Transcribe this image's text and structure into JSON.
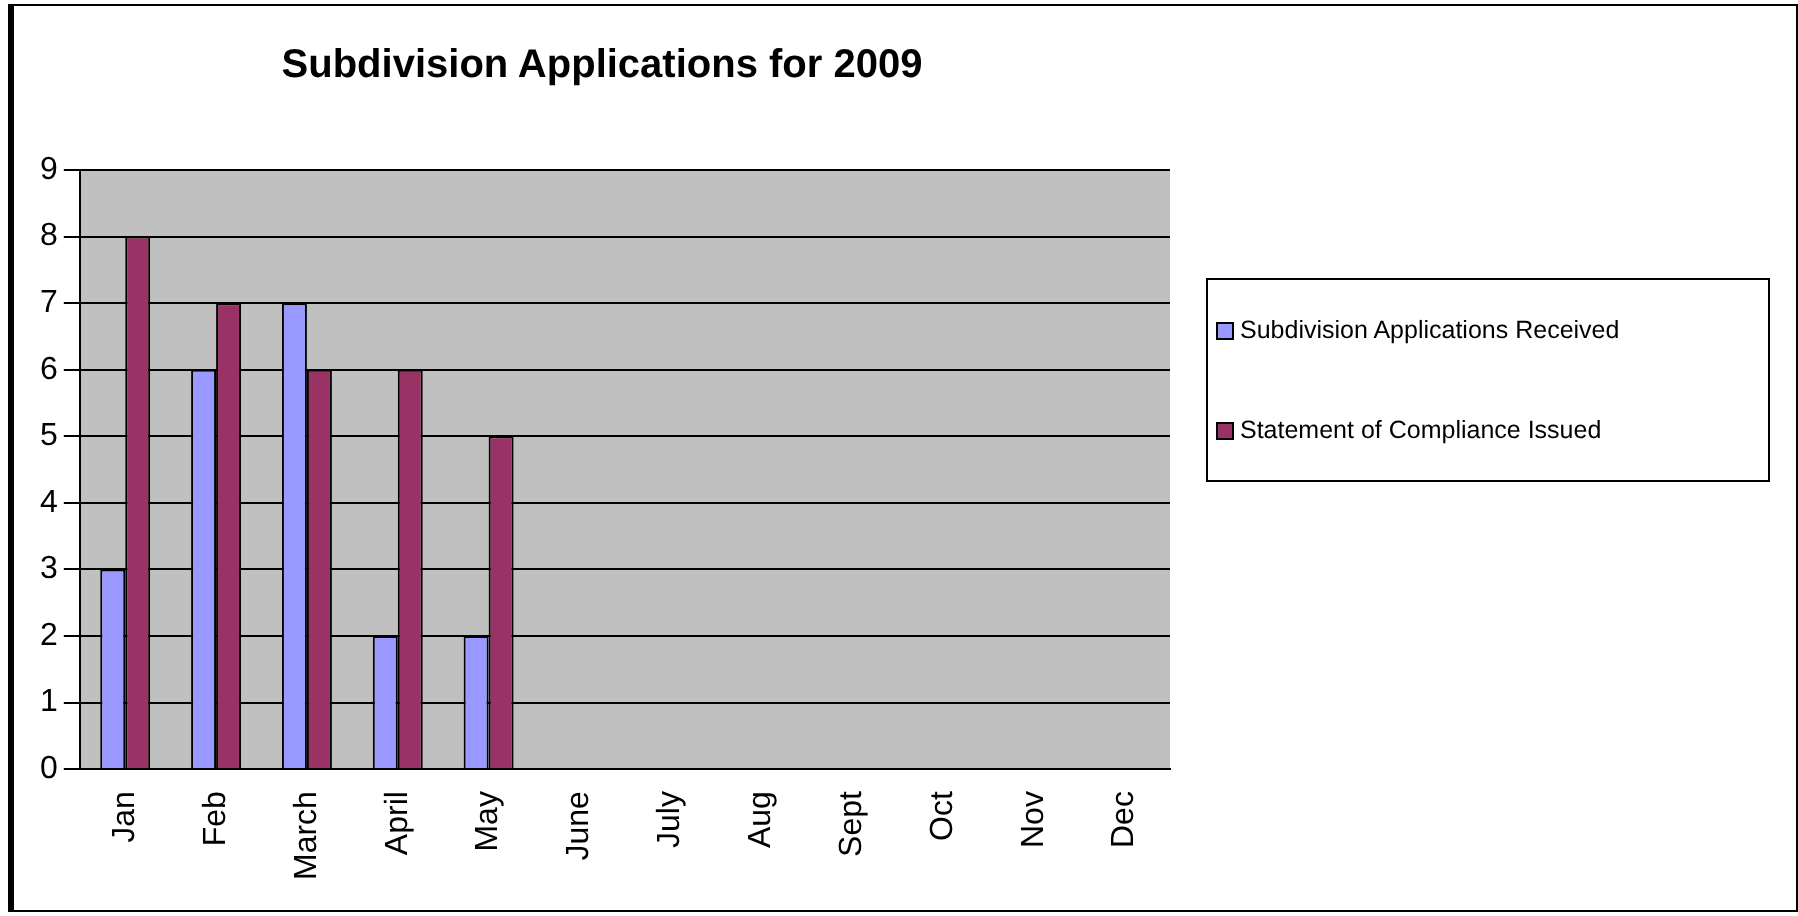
{
  "chart_data": {
    "type": "bar",
    "title": "Subdivision Applications for 2009",
    "categories": [
      "Jan",
      "Feb",
      "March",
      "April",
      "May",
      "June",
      "July",
      "Aug",
      "Sept",
      "Oct",
      "Nov",
      "Dec"
    ],
    "series": [
      {
        "name": "Subdivision Applications Received",
        "color": "#9999ff",
        "values": [
          3,
          6,
          7,
          2,
          2,
          null,
          null,
          null,
          null,
          null,
          null,
          null
        ]
      },
      {
        "name": "Statement of Compliance Issued",
        "color": "#993366",
        "values": [
          8,
          7,
          6,
          6,
          5,
          null,
          null,
          null,
          null,
          null,
          null,
          null
        ]
      }
    ],
    "ylim": [
      0,
      9
    ],
    "yticks": [
      0,
      1,
      2,
      3,
      4,
      5,
      6,
      7,
      8,
      9
    ],
    "grid": "y",
    "legend": "right"
  }
}
